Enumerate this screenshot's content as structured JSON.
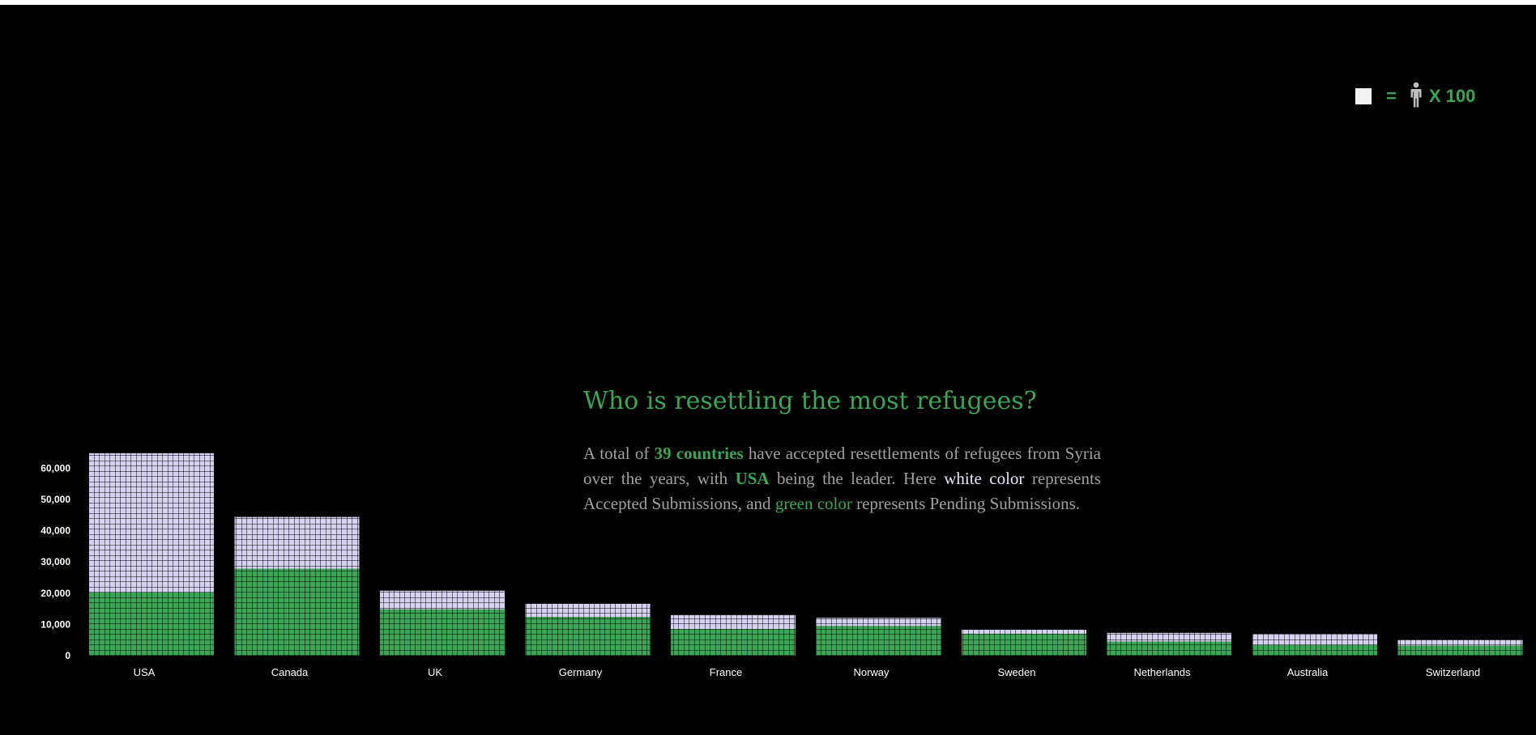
{
  "legend": {
    "equals": "=",
    "multiplier": "X 100",
    "square_icon": "square-icon",
    "person_icon": "person-icon"
  },
  "headline": "Who is resettling the most refugees?",
  "paragraph": {
    "p1": "A total of ",
    "countries": "39 countries",
    "p2": " have accepted resettlements of refugees from Syria over the years, with ",
    "leader": "USA",
    "p3": " being the leader. Here ",
    "white_color": "white color",
    "p4": " represents Accepted Submissions, and ",
    "green_color": "green color",
    "p5": " represents Pending Submissions."
  },
  "colors": {
    "accepted": "#d4d2ee",
    "pending": "#3aa655",
    "cell_border": "#000000"
  },
  "chart_data": {
    "type": "bar",
    "stacked": true,
    "unit_per_cell": 100,
    "yticks": [
      0,
      10000,
      20000,
      30000,
      40000,
      50000,
      60000
    ],
    "ytick_labels": [
      "0",
      "10,000",
      "20,000",
      "30,000",
      "40,000",
      "50,000",
      "60,000"
    ],
    "categories": [
      "USA",
      "Canada",
      "UK",
      "Germany",
      "France",
      "Norway",
      "Sweden",
      "Netherlands",
      "Australia",
      "Switzerland"
    ],
    "series": [
      {
        "key": "pending",
        "values": [
          20300,
          27800,
          14800,
          12400,
          8500,
          9500,
          7000,
          4500,
          3500,
          3200
        ]
      },
      {
        "key": "accepted",
        "values": [
          44500,
          16600,
          6000,
          4200,
          4500,
          2600,
          1300,
          2800,
          3500,
          1800
        ]
      }
    ],
    "ylim": [
      0,
      66000
    ]
  }
}
